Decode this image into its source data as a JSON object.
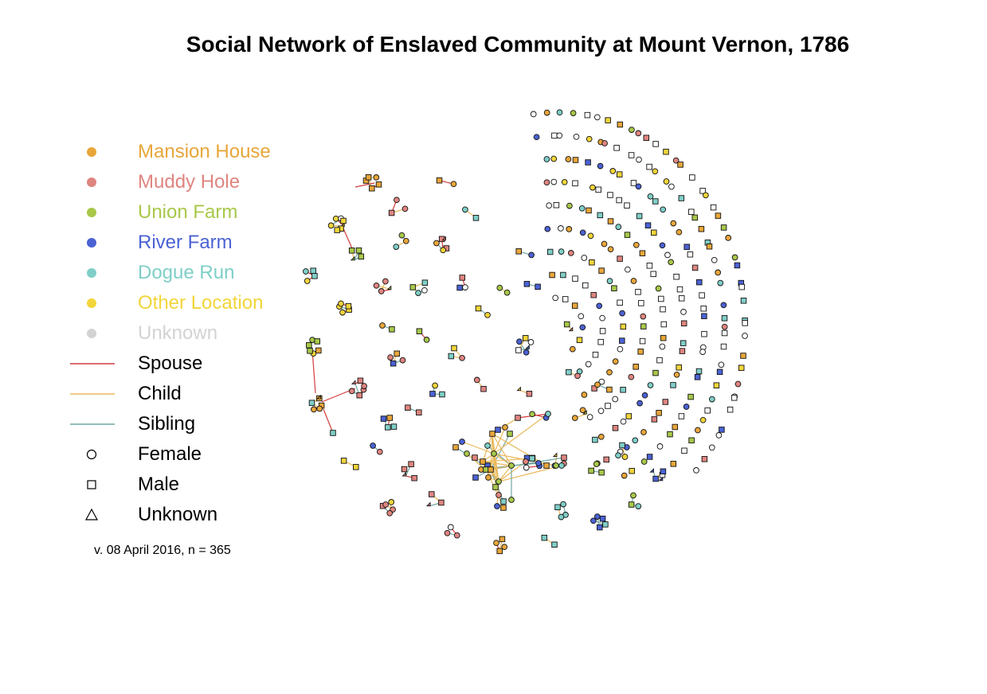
{
  "title": "Social Network of Enslaved Community at Mount Vernon, 1786",
  "version_note": "v. 08 April 2016, n = 365",
  "colors": {
    "mansion_house": "#e8a63a",
    "muddy_hole": "#df8580",
    "union_farm": "#a8c84a",
    "river_farm": "#4b62d3",
    "dogue_run": "#7fcfc8",
    "other_location": "#f2d53a",
    "unknown": "#d3d3d3",
    "spouse": "#d43b3b",
    "child": "#eab95a",
    "sibling": "#6fa7a2"
  },
  "legend": {
    "locations": [
      {
        "key": "mansion_house",
        "label": "Mansion House"
      },
      {
        "key": "muddy_hole",
        "label": "Muddy Hole"
      },
      {
        "key": "union_farm",
        "label": "Union Farm"
      },
      {
        "key": "river_farm",
        "label": "River Farm"
      },
      {
        "key": "dogue_run",
        "label": "Dogue Run"
      },
      {
        "key": "other_location",
        "label": "Other Location"
      },
      {
        "key": "unknown",
        "label": "Unknown"
      }
    ],
    "relations": [
      {
        "key": "spouse",
        "label": "Spouse"
      },
      {
        "key": "child",
        "label": "Child"
      },
      {
        "key": "sibling",
        "label": "Sibling"
      }
    ],
    "genders": [
      {
        "shape": "circle",
        "label": "Female"
      },
      {
        "shape": "square",
        "label": "Male"
      },
      {
        "shape": "triangle",
        "label": "Unknown"
      }
    ]
  }
}
